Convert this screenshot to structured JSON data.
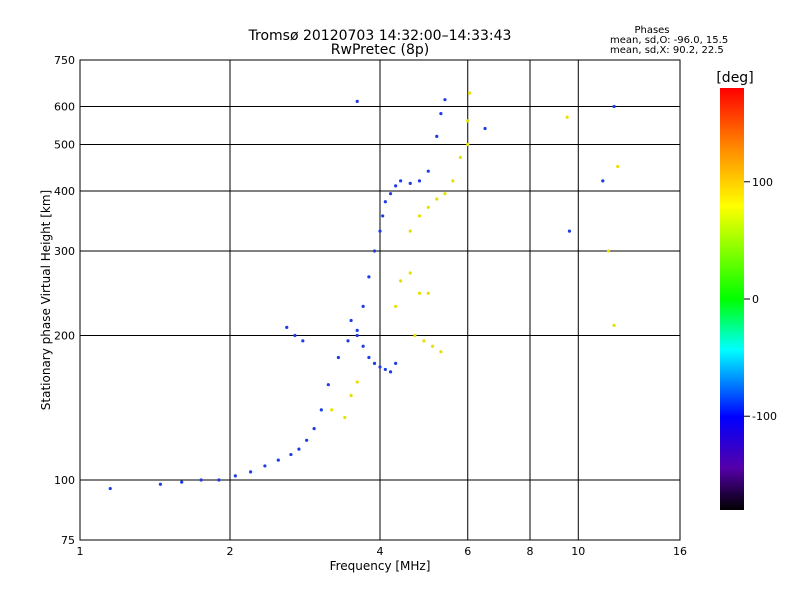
{
  "chart_data": {
    "type": "scatter",
    "title": "Tromsø 20120703 14:32:00–14:33:43",
    "subtitle": "RwPretec (8p)",
    "xlabel": "Frequency [MHz]",
    "ylabel": "Stationary phase Virtual Height [km]",
    "xscale": "log",
    "yscale": "log",
    "xlim": [
      1,
      16
    ],
    "ylim": [
      75,
      750
    ],
    "xticks": [
      1,
      2,
      4,
      6,
      8,
      10,
      16
    ],
    "xtick_labels": [
      "1",
      "2",
      "4",
      "6",
      "8",
      "10",
      "16"
    ],
    "xgrid": [
      2,
      4,
      6,
      8,
      10
    ],
    "yticks": [
      75,
      100,
      200,
      300,
      400,
      500,
      600,
      750
    ],
    "ytick_labels": [
      "75",
      "100",
      "200",
      "300",
      "400",
      "500",
      "600",
      "750"
    ],
    "ygrid": [
      100,
      200,
      300,
      400,
      500,
      600
    ],
    "grid": true,
    "phase_box": {
      "heading": "Phases",
      "line_o": "mean, sd,O:  -96.0, 15.5",
      "line_x": "mean, sd,X:   90.2, 22.5"
    },
    "colorbar": {
      "label": "[deg]",
      "range": [
        -180,
        180
      ],
      "ticks": [
        100,
        0,
        -100
      ],
      "tick_labels": [
        "100",
        "0",
        "-100"
      ],
      "colors": [
        "#ff0000",
        "#ff8800",
        "#ffff00",
        "#00ff00",
        "#00ffff",
        "#0000ff",
        "#5500aa",
        "#000000"
      ]
    },
    "series": [
      {
        "name": "O",
        "phase": -96,
        "color": "#1d3ce6",
        "x": [
          1.15,
          1.45,
          1.6,
          1.75,
          1.9,
          2.05,
          2.2,
          2.35,
          2.5,
          2.65,
          2.75,
          2.85,
          2.95,
          3.05,
          3.15,
          3.3,
          3.45,
          3.6,
          3.7,
          3.8,
          3.9,
          4.0,
          4.05,
          4.1,
          4.2,
          4.3,
          4.4,
          4.6,
          4.8,
          5.0,
          5.2,
          5.3,
          5.4,
          3.5,
          3.6,
          3.7,
          3.8,
          3.9,
          4.0,
          4.1,
          4.2,
          4.3,
          2.6,
          2.7,
          2.8,
          3.6,
          6.5,
          9.6,
          11.2,
          11.8
        ],
        "y": [
          96,
          98,
          99,
          100,
          100,
          102,
          104,
          107,
          110,
          113,
          116,
          121,
          128,
          140,
          158,
          180,
          195,
          205,
          230,
          265,
          300,
          330,
          355,
          380,
          395,
          410,
          420,
          415,
          420,
          440,
          520,
          580,
          620,
          215,
          200,
          190,
          180,
          175,
          172,
          170,
          168,
          175,
          208,
          200,
          195,
          615,
          540,
          330,
          420,
          600
        ]
      },
      {
        "name": "X",
        "phase": 90,
        "color": "#e8e000",
        "x": [
          4.6,
          4.8,
          5.0,
          5.2,
          5.4,
          5.6,
          5.8,
          6.0,
          6.05,
          4.7,
          4.9,
          5.1,
          5.3,
          4.4,
          4.6,
          4.8,
          5.0,
          3.2,
          3.4,
          3.5,
          3.6,
          4.3,
          6.0,
          9.5,
          11.5,
          12.0,
          11.8
        ],
        "y": [
          330,
          355,
          370,
          385,
          395,
          420,
          470,
          560,
          640,
          200,
          195,
          190,
          185,
          260,
          270,
          245,
          245,
          140,
          135,
          150,
          160,
          230,
          500,
          570,
          300,
          450,
          210
        ]
      }
    ]
  }
}
